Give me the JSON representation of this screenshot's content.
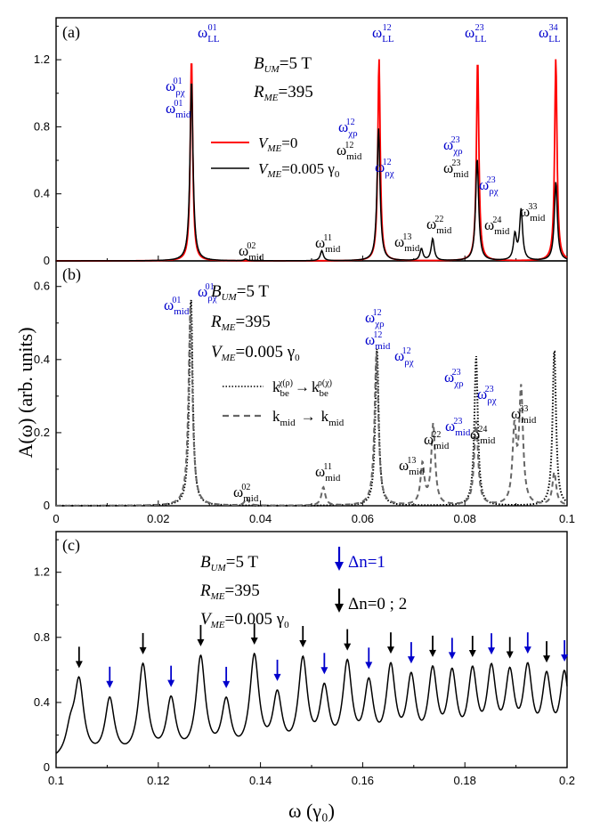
{
  "figure": {
    "ylabel": "A(ω) (arb. units)",
    "xlabel": "ω (γ₀)"
  },
  "chart_data": [
    {
      "id": "a",
      "type": "line",
      "panel_label": "(a)",
      "xlim": [
        0,
        0.1
      ],
      "ylim": [
        0,
        1.45
      ],
      "yticks": [
        "0",
        "0.4",
        "0.8",
        "1.2"
      ],
      "xticks": [
        0,
        0.02,
        0.04,
        0.06,
        0.08,
        0.1
      ],
      "params": {
        "B": "5 T",
        "R": "395"
      },
      "legend": [
        {
          "label": "=0",
          "color": "#ff0000",
          "style": "solid"
        },
        {
          "label": "=0.005",
          "color": "#000000",
          "style": "solid"
        }
      ],
      "series": [
        {
          "name": "V_ME=0",
          "color": "#ff0000",
          "width": 0.00028,
          "peaks": [
            {
              "x": 0.0265,
              "h": 1.22
            },
            {
              "x": 0.0632,
              "h": 1.21
            },
            {
              "x": 0.0825,
              "h": 1.21
            },
            {
              "x": 0.0978,
              "h": 1.21
            }
          ]
        },
        {
          "name": "V_ME=0.005",
          "color": "#000000",
          "width": 0.00035,
          "peaks": [
            {
              "x": 0.0265,
              "h": 1.08
            },
            {
              "x": 0.0371,
              "h": 0.01
            },
            {
              "x": 0.052,
              "h": 0.06
            },
            {
              "x": 0.0631,
              "h": 0.79
            },
            {
              "x": 0.0715,
              "h": 0.07
            },
            {
              "x": 0.0737,
              "h": 0.13
            },
            {
              "x": 0.0824,
              "h": 0.61
            },
            {
              "x": 0.0898,
              "h": 0.15
            },
            {
              "x": 0.091,
              "h": 0.3
            },
            {
              "x": 0.0978,
              "h": 0.47
            }
          ]
        }
      ],
      "annotations": [
        {
          "base": "ω",
          "sub": "LL",
          "sup": "01",
          "color": "blue"
        },
        {
          "base": "ω",
          "sub": "ρχ",
          "sup": "01",
          "color": "blue"
        },
        {
          "base": "ω",
          "sub": "mid",
          "sup": "01",
          "color": "blue"
        },
        {
          "base": "ω",
          "sub": "LL",
          "sup": "12",
          "color": "blue"
        },
        {
          "base": "ω",
          "sub": "χρ",
          "sup": "12",
          "color": "blue"
        },
        {
          "base": "ω",
          "sub": "mid",
          "sup": "12",
          "color": "black"
        },
        {
          "base": "ω",
          "sub": "ρχ",
          "sup": "12",
          "color": "blue"
        },
        {
          "base": "ω",
          "sub": "LL",
          "sup": "23",
          "color": "blue"
        },
        {
          "base": "ω",
          "sub": "χρ",
          "sup": "23",
          "color": "blue"
        },
        {
          "base": "ω",
          "sub": "mid",
          "sup": "23",
          "color": "black"
        },
        {
          "base": "ω",
          "sub": "ρχ",
          "sup": "23",
          "color": "blue"
        },
        {
          "base": "ω",
          "sub": "LL",
          "sup": "34",
          "color": "blue"
        },
        {
          "base": "ω",
          "sub": "mid",
          "sup": "02",
          "color": "black"
        },
        {
          "base": "ω",
          "sub": "mid",
          "sup": "11",
          "color": "black"
        },
        {
          "base": "ω",
          "sub": "mid",
          "sup": "13",
          "color": "black"
        },
        {
          "base": "ω",
          "sub": "mid",
          "sup": "22",
          "color": "black"
        },
        {
          "base": "ω",
          "sub": "mid",
          "sup": "24",
          "color": "black"
        },
        {
          "base": "ω",
          "sub": "mid",
          "sup": "33",
          "color": "black"
        }
      ]
    },
    {
      "id": "b",
      "type": "line",
      "panel_label": "(b)",
      "xlim": [
        0,
        0.1
      ],
      "ylim": [
        0,
        0.67
      ],
      "yticks": [
        "0",
        "0.2",
        "0.4",
        "0.6"
      ],
      "xticks": [
        "0",
        "0.02",
        "0.04",
        "0.06",
        "0.08",
        "0.1"
      ],
      "params": {
        "B": "5 T",
        "R": "395",
        "V": "0.005"
      },
      "legend": [
        {
          "label": "k_be^χ(ρ) → k_be^ρ(χ)",
          "color": "#000000",
          "style": "dotted"
        },
        {
          "label": "k_mid → k_mid",
          "color": "#666666",
          "style": "dashed"
        }
      ],
      "series": [
        {
          "name": "k_be^χ(ρ) → k_be^ρ(χ)",
          "color": "#000000",
          "dash": "1.5,2",
          "width": 0.0004,
          "peaks": [
            {
              "x": 0.0264,
              "h": 0.57
            },
            {
              "x": 0.0628,
              "h": 0.43
            },
            {
              "x": 0.0822,
              "h": 0.41
            },
            {
              "x": 0.0975,
              "h": 0.43
            }
          ]
        },
        {
          "name": "k_mid → k_mid",
          "color": "#666666",
          "dash": "6,4",
          "width": 0.00045,
          "peaks": [
            {
              "x": 0.0263,
              "h": 0.55
            },
            {
              "x": 0.0373,
              "h": 0.02
            },
            {
              "x": 0.0523,
              "h": 0.05
            },
            {
              "x": 0.0627,
              "h": 0.42
            },
            {
              "x": 0.0717,
              "h": 0.11
            },
            {
              "x": 0.0738,
              "h": 0.22
            },
            {
              "x": 0.0822,
              "h": 0.23
            },
            {
              "x": 0.0897,
              "h": 0.2
            },
            {
              "x": 0.091,
              "h": 0.31
            },
            {
              "x": 0.0975,
              "h": 0.09
            }
          ]
        }
      ],
      "annotations": [
        {
          "base": "ω",
          "sub": "mid",
          "sup": "01",
          "color": "blue"
        },
        {
          "base": "ω",
          "sub": "ρχ",
          "sup": "01",
          "color": "blue"
        },
        {
          "base": "ω",
          "sub": "χρ",
          "sup": "12",
          "color": "blue"
        },
        {
          "base": "ω",
          "sub": "mid",
          "sup": "12",
          "color": "blue"
        },
        {
          "base": "ω",
          "sub": "ρχ",
          "sup": "12",
          "color": "blue"
        },
        {
          "base": "ω",
          "sub": "χρ",
          "sup": "23",
          "color": "blue"
        },
        {
          "base": "ω",
          "sub": "ρχ",
          "sup": "23",
          "color": "blue"
        },
        {
          "base": "ω",
          "sub": "mid",
          "sup": "23",
          "color": "blue"
        },
        {
          "base": "ω",
          "sub": "mid",
          "sup": "02",
          "color": "black"
        },
        {
          "base": "ω",
          "sub": "mid",
          "sup": "11",
          "color": "black"
        },
        {
          "base": "ω",
          "sub": "mid",
          "sup": "13",
          "color": "black"
        },
        {
          "base": "ω",
          "sub": "mid",
          "sup": "22",
          "color": "black"
        },
        {
          "base": "ω",
          "sub": "mid",
          "sup": "24",
          "color": "black"
        },
        {
          "base": "ω",
          "sub": "mid",
          "sup": "33",
          "color": "black"
        }
      ]
    },
    {
      "id": "c",
      "type": "line",
      "panel_label": "(c)",
      "xlim": [
        0.1,
        0.2
      ],
      "ylim": [
        0,
        1.45
      ],
      "yticks": [
        "0",
        "0.4",
        "0.8",
        "1.2"
      ],
      "xticks": [
        "0.1",
        "0.12",
        "0.14",
        "0.16",
        "0.18",
        "0.2"
      ],
      "params": {
        "B": "5 T",
        "R": "395",
        "V": "0.005"
      },
      "arrow_legend": [
        {
          "label": "Δn=1",
          "color": "#0000cc"
        },
        {
          "label": "Δn=0 ; 2",
          "color": "#000000"
        }
      ],
      "series": [
        {
          "name": "V_ME=0.005",
          "color": "#000000",
          "width": 0.0011,
          "baseline": 0.03,
          "peaks": [
            {
              "x": 0.1028,
              "h": 0.15
            },
            {
              "x": 0.1045,
              "h": 0.46,
              "arrow": "black"
            },
            {
              "x": 0.1105,
              "h": 0.36,
              "arrow": "blue"
            },
            {
              "x": 0.117,
              "h": 0.57,
              "arrow": "black"
            },
            {
              "x": 0.1225,
              "h": 0.35,
              "arrow": "blue"
            },
            {
              "x": 0.1283,
              "h": 0.61,
              "arrow": "black"
            },
            {
              "x": 0.1333,
              "h": 0.33,
              "arrow": "blue"
            },
            {
              "x": 0.1388,
              "h": 0.61,
              "arrow": "black"
            },
            {
              "x": 0.1433,
              "h": 0.36,
              "arrow": "blue"
            },
            {
              "x": 0.1483,
              "h": 0.58,
              "arrow": "black"
            },
            {
              "x": 0.1525,
              "h": 0.39,
              "arrow": "blue"
            },
            {
              "x": 0.157,
              "h": 0.55,
              "arrow": "black"
            },
            {
              "x": 0.1612,
              "h": 0.42,
              "arrow": "blue"
            },
            {
              "x": 0.1655,
              "h": 0.52,
              "arrow": "black"
            },
            {
              "x": 0.1695,
              "h": 0.45,
              "arrow": "blue"
            },
            {
              "x": 0.1737,
              "h": 0.49,
              "arrow": "black"
            },
            {
              "x": 0.1775,
              "h": 0.47,
              "arrow": "blue"
            },
            {
              "x": 0.1815,
              "h": 0.48,
              "arrow": "black"
            },
            {
              "x": 0.1852,
              "h": 0.49,
              "arrow": "blue"
            },
            {
              "x": 0.1888,
              "h": 0.46,
              "arrow": "black"
            },
            {
              "x": 0.1923,
              "h": 0.5,
              "arrow": "blue"
            },
            {
              "x": 0.196,
              "h": 0.45,
              "arrow": "black"
            },
            {
              "x": 0.1995,
              "h": 0.5,
              "arrow": "blue"
            }
          ]
        }
      ]
    }
  ]
}
